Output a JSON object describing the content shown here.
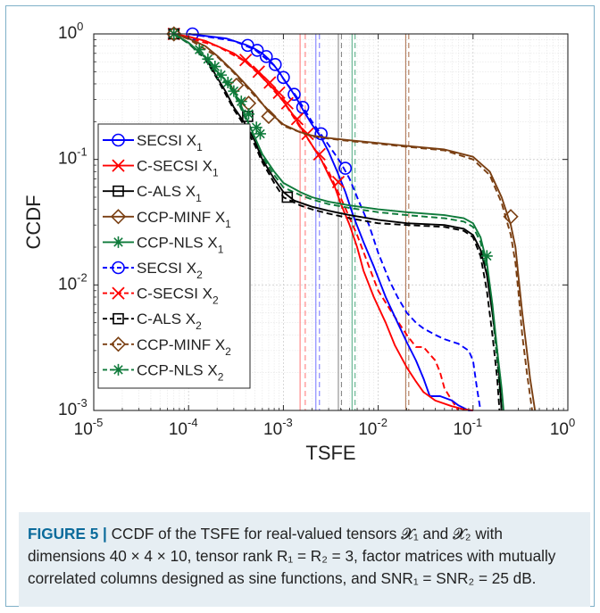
{
  "figure": {
    "caption_label": "FIGURE 5 |",
    "caption_text": " CCDF of the TSFE for real-valued tensors 𝓧₁ and 𝓧₂ with dimensions 40 × 4 × 10, tensor rank R₁ = R₂ = 3, factor matrices with mutually correlated columns designed as sine functions, and SNR₁ = SNR₂ = 25 dB."
  },
  "chart_data": {
    "type": "line",
    "xlabel": "TSFE",
    "ylabel": "CCDF",
    "xscale": "log",
    "yscale": "log",
    "xlim": [
      1e-05,
      1
    ],
    "ylim": [
      0.001,
      1
    ],
    "x_ticks": [
      {
        "value": 1e-05,
        "base": "10",
        "exp": "-5"
      },
      {
        "value": 0.0001,
        "base": "10",
        "exp": "-4"
      },
      {
        "value": 0.001,
        "base": "10",
        "exp": "-3"
      },
      {
        "value": 0.01,
        "base": "10",
        "exp": "-2"
      },
      {
        "value": 0.1,
        "base": "10",
        "exp": "-1"
      },
      {
        "value": 1,
        "base": "10",
        "exp": "0"
      }
    ],
    "y_ticks": [
      {
        "value": 0.001,
        "base": "10",
        "exp": "-3"
      },
      {
        "value": 0.01,
        "base": "10",
        "exp": "-2"
      },
      {
        "value": 0.1,
        "base": "10",
        "exp": "-1"
      },
      {
        "value": 1,
        "base": "10",
        "exp": "0"
      }
    ],
    "grid": true,
    "legend_position": "left",
    "series": [
      {
        "name": "SECSI X",
        "sub": "1",
        "color": "#0000ff",
        "dash": "solid",
        "marker": "circle",
        "x": [
          0.0001,
          0.00025,
          0.0004,
          0.0005,
          0.0006,
          0.0007,
          0.0008,
          0.0009,
          0.001,
          0.0012,
          0.0014,
          0.0016,
          0.002,
          0.0025,
          0.003,
          0.0037,
          0.0045,
          0.0055,
          0.007,
          0.009,
          0.012,
          0.016,
          0.02,
          0.025,
          0.03,
          0.035,
          0.045,
          0.06,
          0.07,
          0.09,
          0.1
        ],
        "y": [
          1,
          0.92,
          0.82,
          0.76,
          0.7,
          0.63,
          0.56,
          0.5,
          0.44,
          0.36,
          0.3,
          0.25,
          0.19,
          0.15,
          0.115,
          0.08,
          0.055,
          0.035,
          0.022,
          0.014,
          0.008,
          0.005,
          0.0035,
          0.0025,
          0.0018,
          0.0013,
          0.0013,
          0.0012,
          0.0011,
          0.001,
          0.001
        ],
        "marker_x": [
          0.00011,
          0.00042,
          0.00053,
          0.00066,
          0.00082,
          0.001,
          0.0013,
          0.0016,
          0.0025,
          0.0045
        ],
        "marker_y": [
          1,
          0.81,
          0.74,
          0.66,
          0.57,
          0.45,
          0.33,
          0.26,
          0.16,
          0.085
        ]
      },
      {
        "name": "C-SECSI X",
        "sub": "1",
        "color": "#ff0000",
        "dash": "solid",
        "marker": "x",
        "x": [
          7e-05,
          0.0001,
          0.00015,
          0.0002,
          0.0003,
          0.0004,
          0.0005,
          0.0006,
          0.0008,
          0.001,
          0.0013,
          0.0016,
          0.002,
          0.0025,
          0.003,
          0.0035,
          0.004,
          0.005,
          0.006,
          0.007,
          0.009,
          0.012,
          0.015,
          0.02,
          0.025,
          0.03,
          0.04,
          0.06,
          0.08,
          0.1
        ],
        "y": [
          1,
          0.95,
          0.88,
          0.8,
          0.7,
          0.6,
          0.52,
          0.45,
          0.36,
          0.29,
          0.22,
          0.17,
          0.13,
          0.1,
          0.075,
          0.06,
          0.045,
          0.03,
          0.02,
          0.013,
          0.008,
          0.005,
          0.0033,
          0.0022,
          0.0017,
          0.0014,
          0.0012,
          0.00108,
          0.00102,
          0.001
        ],
        "marker_x": [
          7e-05,
          0.0004,
          0.00055,
          0.00072,
          0.0009,
          0.0011,
          0.0014,
          0.0018,
          0.0024,
          0.0038
        ],
        "marker_y": [
          1,
          0.62,
          0.5,
          0.41,
          0.34,
          0.28,
          0.21,
          0.16,
          0.11,
          0.066
        ]
      },
      {
        "name": "C-ALS X",
        "sub": "1",
        "color": "#000000",
        "dash": "solid",
        "marker": "square",
        "x": [
          7e-05,
          0.0001,
          0.00015,
          0.0002,
          0.00025,
          0.0003,
          0.00035,
          0.0004,
          0.0005,
          0.0006,
          0.0008,
          0.001,
          0.0013,
          0.002,
          0.003,
          0.005,
          0.01,
          0.02,
          0.05,
          0.08,
          0.1,
          0.12,
          0.14,
          0.16,
          0.18,
          0.19,
          0.2
        ],
        "y": [
          1,
          0.85,
          0.65,
          0.45,
          0.34,
          0.26,
          0.22,
          0.19,
          0.14,
          0.1,
          0.07,
          0.055,
          0.047,
          0.042,
          0.039,
          0.036,
          0.033,
          0.031,
          0.03,
          0.028,
          0.025,
          0.019,
          0.012,
          0.006,
          0.003,
          0.0018,
          0.001
        ],
        "marker_x": [
          7e-05,
          0.00042,
          0.0011
        ],
        "marker_y": [
          1,
          0.22,
          0.05
        ]
      },
      {
        "name": "CCP-MINF X",
        "sub": "1",
        "color": "#7a3f12",
        "dash": "solid",
        "marker": "diamond",
        "x": [
          7e-05,
          0.0001,
          0.00015,
          0.0002,
          0.0003,
          0.0005,
          0.0007,
          0.001,
          0.0015,
          0.002,
          0.003,
          0.005,
          0.01,
          0.02,
          0.05,
          0.1,
          0.15,
          0.2,
          0.25,
          0.28,
          0.3,
          0.33,
          0.36,
          0.4,
          0.45
        ],
        "y": [
          1,
          0.92,
          0.8,
          0.67,
          0.5,
          0.33,
          0.24,
          0.19,
          0.165,
          0.155,
          0.148,
          0.142,
          0.135,
          0.128,
          0.12,
          0.105,
          0.08,
          0.05,
          0.03,
          0.02,
          0.012,
          0.006,
          0.0035,
          0.0018,
          0.001
        ],
        "marker_x": [
          7e-05,
          0.00032,
          0.00043,
          0.0007,
          0.25
        ],
        "marker_y": [
          1,
          0.39,
          0.28,
          0.22,
          0.035
        ]
      },
      {
        "name": "CCP-NLS X",
        "sub": "1",
        "color": "#0e7a3a",
        "dash": "solid",
        "marker": "asterisk",
        "x": [
          7e-05,
          0.0001,
          0.00015,
          0.0002,
          0.00025,
          0.0003,
          0.00035,
          0.0004,
          0.0005,
          0.0006,
          0.0008,
          0.001,
          0.0015,
          0.002,
          0.003,
          0.005,
          0.01,
          0.02,
          0.05,
          0.08,
          0.1,
          0.12,
          0.14,
          0.16,
          0.18,
          0.2,
          0.21
        ],
        "y": [
          1,
          0.85,
          0.65,
          0.5,
          0.42,
          0.35,
          0.28,
          0.22,
          0.15,
          0.11,
          0.08,
          0.065,
          0.055,
          0.05,
          0.046,
          0.043,
          0.04,
          0.038,
          0.036,
          0.034,
          0.031,
          0.024,
          0.015,
          0.007,
          0.003,
          0.0015,
          0.001
        ],
        "marker_x": [
          7e-05,
          0.00013,
          0.00016,
          0.00019,
          0.00022,
          0.00026,
          0.0003,
          0.00036,
          0.00043,
          0.00052,
          0.00057,
          0.14
        ],
        "marker_y": [
          1,
          0.75,
          0.63,
          0.55,
          0.47,
          0.41,
          0.35,
          0.29,
          0.23,
          0.18,
          0.16,
          0.017
        ]
      },
      {
        "name": "SECSI X",
        "sub": "2",
        "color": "#0000ff",
        "dash": "dashed",
        "marker": "circle",
        "x": [
          0.0001,
          0.0003,
          0.0005,
          0.0008,
          0.001,
          0.0014,
          0.002,
          0.003,
          0.004,
          0.005,
          0.006,
          0.008,
          0.01,
          0.013,
          0.016,
          0.02,
          0.025,
          0.03,
          0.04,
          0.05,
          0.07,
          0.09,
          0.1,
          0.11,
          0.12
        ],
        "y": [
          1,
          0.88,
          0.75,
          0.56,
          0.44,
          0.31,
          0.2,
          0.13,
          0.095,
          0.07,
          0.05,
          0.03,
          0.018,
          0.011,
          0.008,
          0.006,
          0.005,
          0.0045,
          0.004,
          0.0037,
          0.0034,
          0.003,
          0.0025,
          0.0015,
          0.001
        ],
        "marker_x": [],
        "marker_y": []
      },
      {
        "name": "C-SECSI X",
        "sub": "2",
        "color": "#ff0000",
        "dash": "dashed",
        "marker": "x",
        "x": [
          7e-05,
          0.0002,
          0.0004,
          0.0006,
          0.001,
          0.0015,
          0.002,
          0.003,
          0.004,
          0.006,
          0.008,
          0.01,
          0.014,
          0.02,
          0.025,
          0.03,
          0.035,
          0.04,
          0.045,
          0.05,
          0.06,
          0.07
        ],
        "y": [
          1,
          0.8,
          0.6,
          0.45,
          0.29,
          0.18,
          0.13,
          0.08,
          0.05,
          0.025,
          0.014,
          0.009,
          0.006,
          0.004,
          0.0032,
          0.0032,
          0.0028,
          0.0025,
          0.002,
          0.0015,
          0.0012,
          0.001
        ],
        "marker_x": [],
        "marker_y": []
      },
      {
        "name": "C-ALS X",
        "sub": "2",
        "color": "#000000",
        "dash": "dashed",
        "marker": "square",
        "x": [
          7e-05,
          0.0001,
          0.00015,
          0.0002,
          0.0003,
          0.0004,
          0.0005,
          0.0006,
          0.0008,
          0.001,
          0.0015,
          0.002,
          0.003,
          0.005,
          0.01,
          0.02,
          0.05,
          0.08,
          0.1,
          0.12,
          0.14,
          0.16,
          0.18,
          0.19
        ],
        "y": [
          1,
          0.84,
          0.63,
          0.44,
          0.25,
          0.18,
          0.13,
          0.095,
          0.065,
          0.05,
          0.043,
          0.04,
          0.037,
          0.034,
          0.031,
          0.03,
          0.029,
          0.027,
          0.024,
          0.017,
          0.009,
          0.004,
          0.0018,
          0.001
        ],
        "marker_x": [],
        "marker_y": []
      },
      {
        "name": "CCP-MINF X",
        "sub": "2",
        "color": "#7a3f12",
        "dash": "dashed",
        "marker": "diamond",
        "x": [
          7e-05,
          0.0001,
          0.0002,
          0.0003,
          0.0005,
          0.001,
          0.002,
          0.005,
          0.01,
          0.02,
          0.05,
          0.1,
          0.15,
          0.2,
          0.25,
          0.28,
          0.3,
          0.33,
          0.37,
          0.42
        ],
        "y": [
          1,
          0.91,
          0.66,
          0.49,
          0.32,
          0.185,
          0.152,
          0.14,
          0.133,
          0.126,
          0.118,
          0.1,
          0.075,
          0.045,
          0.025,
          0.015,
          0.009,
          0.004,
          0.002,
          0.001
        ],
        "marker_x": [],
        "marker_y": []
      },
      {
        "name": "CCP-NLS X",
        "sub": "2",
        "color": "#0e7a3a",
        "dash": "dashed",
        "marker": "asterisk",
        "x": [
          7e-05,
          0.0001,
          0.00015,
          0.0002,
          0.0003,
          0.0004,
          0.0005,
          0.0006,
          0.0008,
          0.001,
          0.0015,
          0.002,
          0.003,
          0.005,
          0.01,
          0.02,
          0.05,
          0.08,
          0.1,
          0.12,
          0.14,
          0.16,
          0.18,
          0.2
        ],
        "y": [
          1,
          0.84,
          0.64,
          0.49,
          0.34,
          0.21,
          0.145,
          0.105,
          0.075,
          0.06,
          0.052,
          0.048,
          0.044,
          0.041,
          0.038,
          0.036,
          0.034,
          0.032,
          0.029,
          0.022,
          0.013,
          0.006,
          0.0025,
          0.001
        ],
        "marker_x": [],
        "marker_y": []
      }
    ],
    "vlines": [
      {
        "x": 0.0015,
        "color": "#ff8080",
        "dash": "solid"
      },
      {
        "x": 0.0017,
        "color": "#ff8080",
        "dash": "dashed"
      },
      {
        "x": 0.0022,
        "color": "#8080ff",
        "dash": "solid"
      },
      {
        "x": 0.0024,
        "color": "#8080ff",
        "dash": "dashed"
      },
      {
        "x": 0.0038,
        "color": "#8a8a8a",
        "dash": "solid"
      },
      {
        "x": 0.0041,
        "color": "#8a8a8a",
        "dash": "dashed"
      },
      {
        "x": 0.0053,
        "color": "#5cb08a",
        "dash": "solid"
      },
      {
        "x": 0.0057,
        "color": "#5cb08a",
        "dash": "dashed"
      },
      {
        "x": 0.0195,
        "color": "#b07a5a",
        "dash": "solid"
      },
      {
        "x": 0.021,
        "color": "#b07a5a",
        "dash": "dashed"
      }
    ]
  }
}
